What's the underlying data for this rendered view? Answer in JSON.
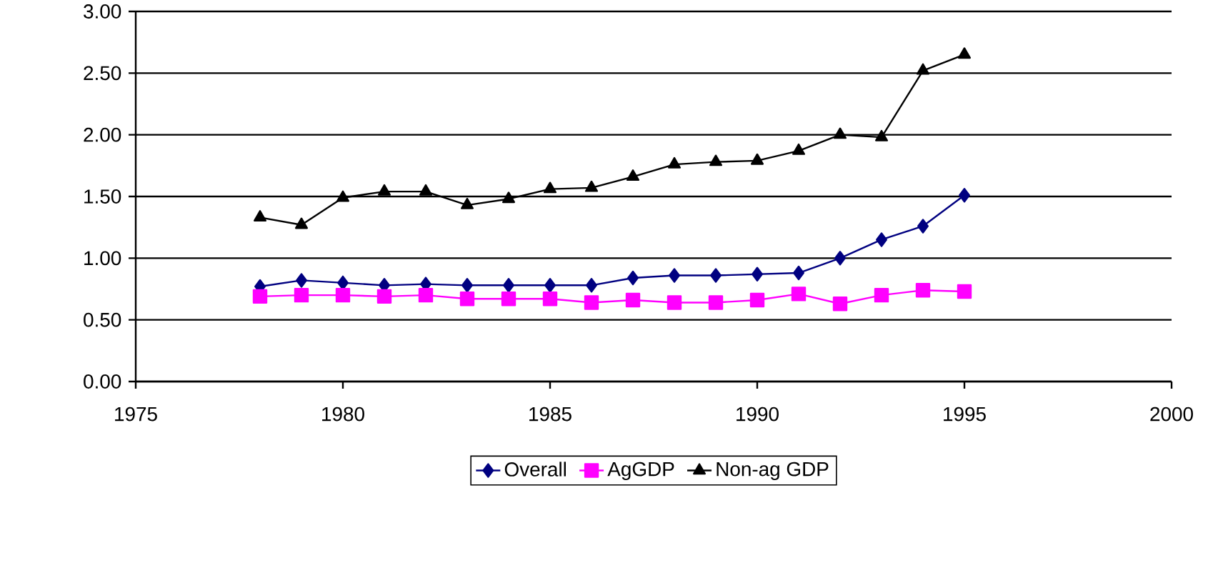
{
  "chart_data": {
    "type": "line",
    "x": [
      1978,
      1979,
      1980,
      1981,
      1982,
      1983,
      1984,
      1985,
      1986,
      1987,
      1988,
      1989,
      1990,
      1991,
      1992,
      1993,
      1994,
      1995
    ],
    "series": [
      {
        "name": "Overall",
        "color": "#000080",
        "marker": "diamond",
        "values": [
          0.77,
          0.82,
          0.8,
          0.78,
          0.79,
          0.78,
          0.78,
          0.78,
          0.78,
          0.84,
          0.86,
          0.86,
          0.87,
          0.88,
          1.0,
          1.15,
          1.26,
          1.51
        ]
      },
      {
        "name": "AgGDP",
        "color": "#ff00ff",
        "marker": "square",
        "values": [
          0.69,
          0.7,
          0.7,
          0.69,
          0.7,
          0.67,
          0.67,
          0.67,
          0.64,
          0.66,
          0.64,
          0.64,
          0.66,
          0.71,
          0.63,
          0.7,
          0.74,
          0.73
        ]
      },
      {
        "name": "Non-ag GDP",
        "color": "#000000",
        "marker": "triangle",
        "values": [
          1.33,
          1.27,
          1.49,
          1.54,
          1.54,
          1.43,
          1.48,
          1.56,
          1.57,
          1.66,
          1.76,
          1.78,
          1.79,
          1.87,
          2.0,
          1.98,
          2.52,
          2.65
        ]
      }
    ],
    "xlim": [
      1975,
      2000
    ],
    "xticks": [
      1975,
      1980,
      1985,
      1990,
      1995,
      2000
    ],
    "ylim": [
      0,
      3
    ],
    "yticks": [
      {
        "value": 0,
        "label": "0.00"
      },
      {
        "value": 0.5,
        "label": "0.50"
      },
      {
        "value": 1,
        "label": "1.00"
      },
      {
        "value": 1.5,
        "label": "1.50"
      },
      {
        "value": 2,
        "label": "2.00"
      },
      {
        "value": 2.5,
        "label": "2.50"
      },
      {
        "value": 3,
        "label": "3.00"
      }
    ],
    "grid": "y",
    "legend": "bottom"
  }
}
